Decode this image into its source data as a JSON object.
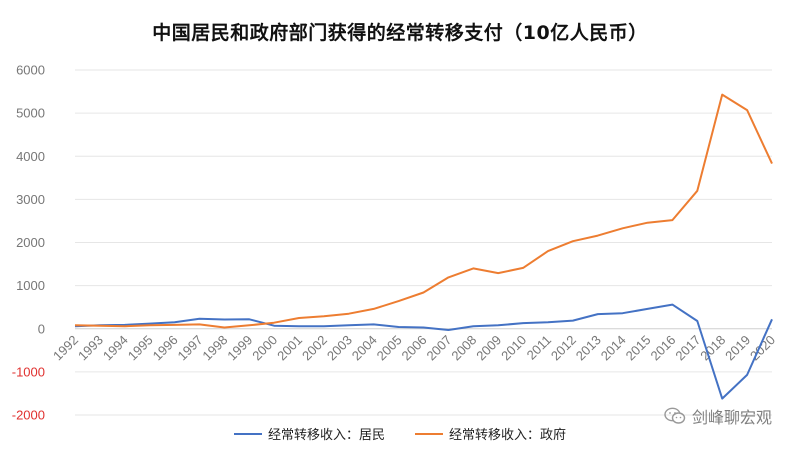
{
  "chart_data": {
    "type": "line",
    "title": "中国居民和政府部门获得的经常转移支付（10亿人民币）",
    "x": [
      "1992",
      "1993",
      "1994",
      "1995",
      "1996",
      "1997",
      "1998",
      "1999",
      "2000",
      "2001",
      "2002",
      "2003",
      "2004",
      "2005",
      "2006",
      "2007",
      "2008",
      "2009",
      "2010",
      "2011",
      "2012",
      "2013",
      "2014",
      "2015",
      "2016",
      "2017",
      "2018",
      "2019",
      "2020"
    ],
    "series": [
      {
        "name": "经常转移收入：居民",
        "color": "#4472C4",
        "values": [
          60,
          80,
          90,
          120,
          150,
          230,
          215,
          220,
          70,
          60,
          60,
          80,
          100,
          40,
          30,
          -30,
          60,
          80,
          130,
          150,
          190,
          340,
          360,
          460,
          560,
          180,
          -1620,
          -1070,
          220
        ]
      },
      {
        "name": "经常转移收入：政府",
        "color": "#ED7D31",
        "values": [
          80,
          70,
          60,
          80,
          90,
          100,
          30,
          80,
          140,
          250,
          290,
          350,
          460,
          640,
          840,
          1190,
          1400,
          1290,
          1410,
          1800,
          2030,
          2160,
          2330,
          2460,
          2520,
          3200,
          5430,
          5070,
          3830
        ]
      }
    ],
    "ylim": [
      -2000,
      6000
    ],
    "yticks": [
      -2000,
      -1000,
      0,
      1000,
      2000,
      3000,
      4000,
      5000,
      6000
    ],
    "negative_tick_color": "#E0312F",
    "positive_tick_color": "#777777",
    "grid": true,
    "legend": "bottom"
  },
  "watermark": {
    "text": "剑峰聊宏观",
    "icon": "wechat-icon"
  }
}
